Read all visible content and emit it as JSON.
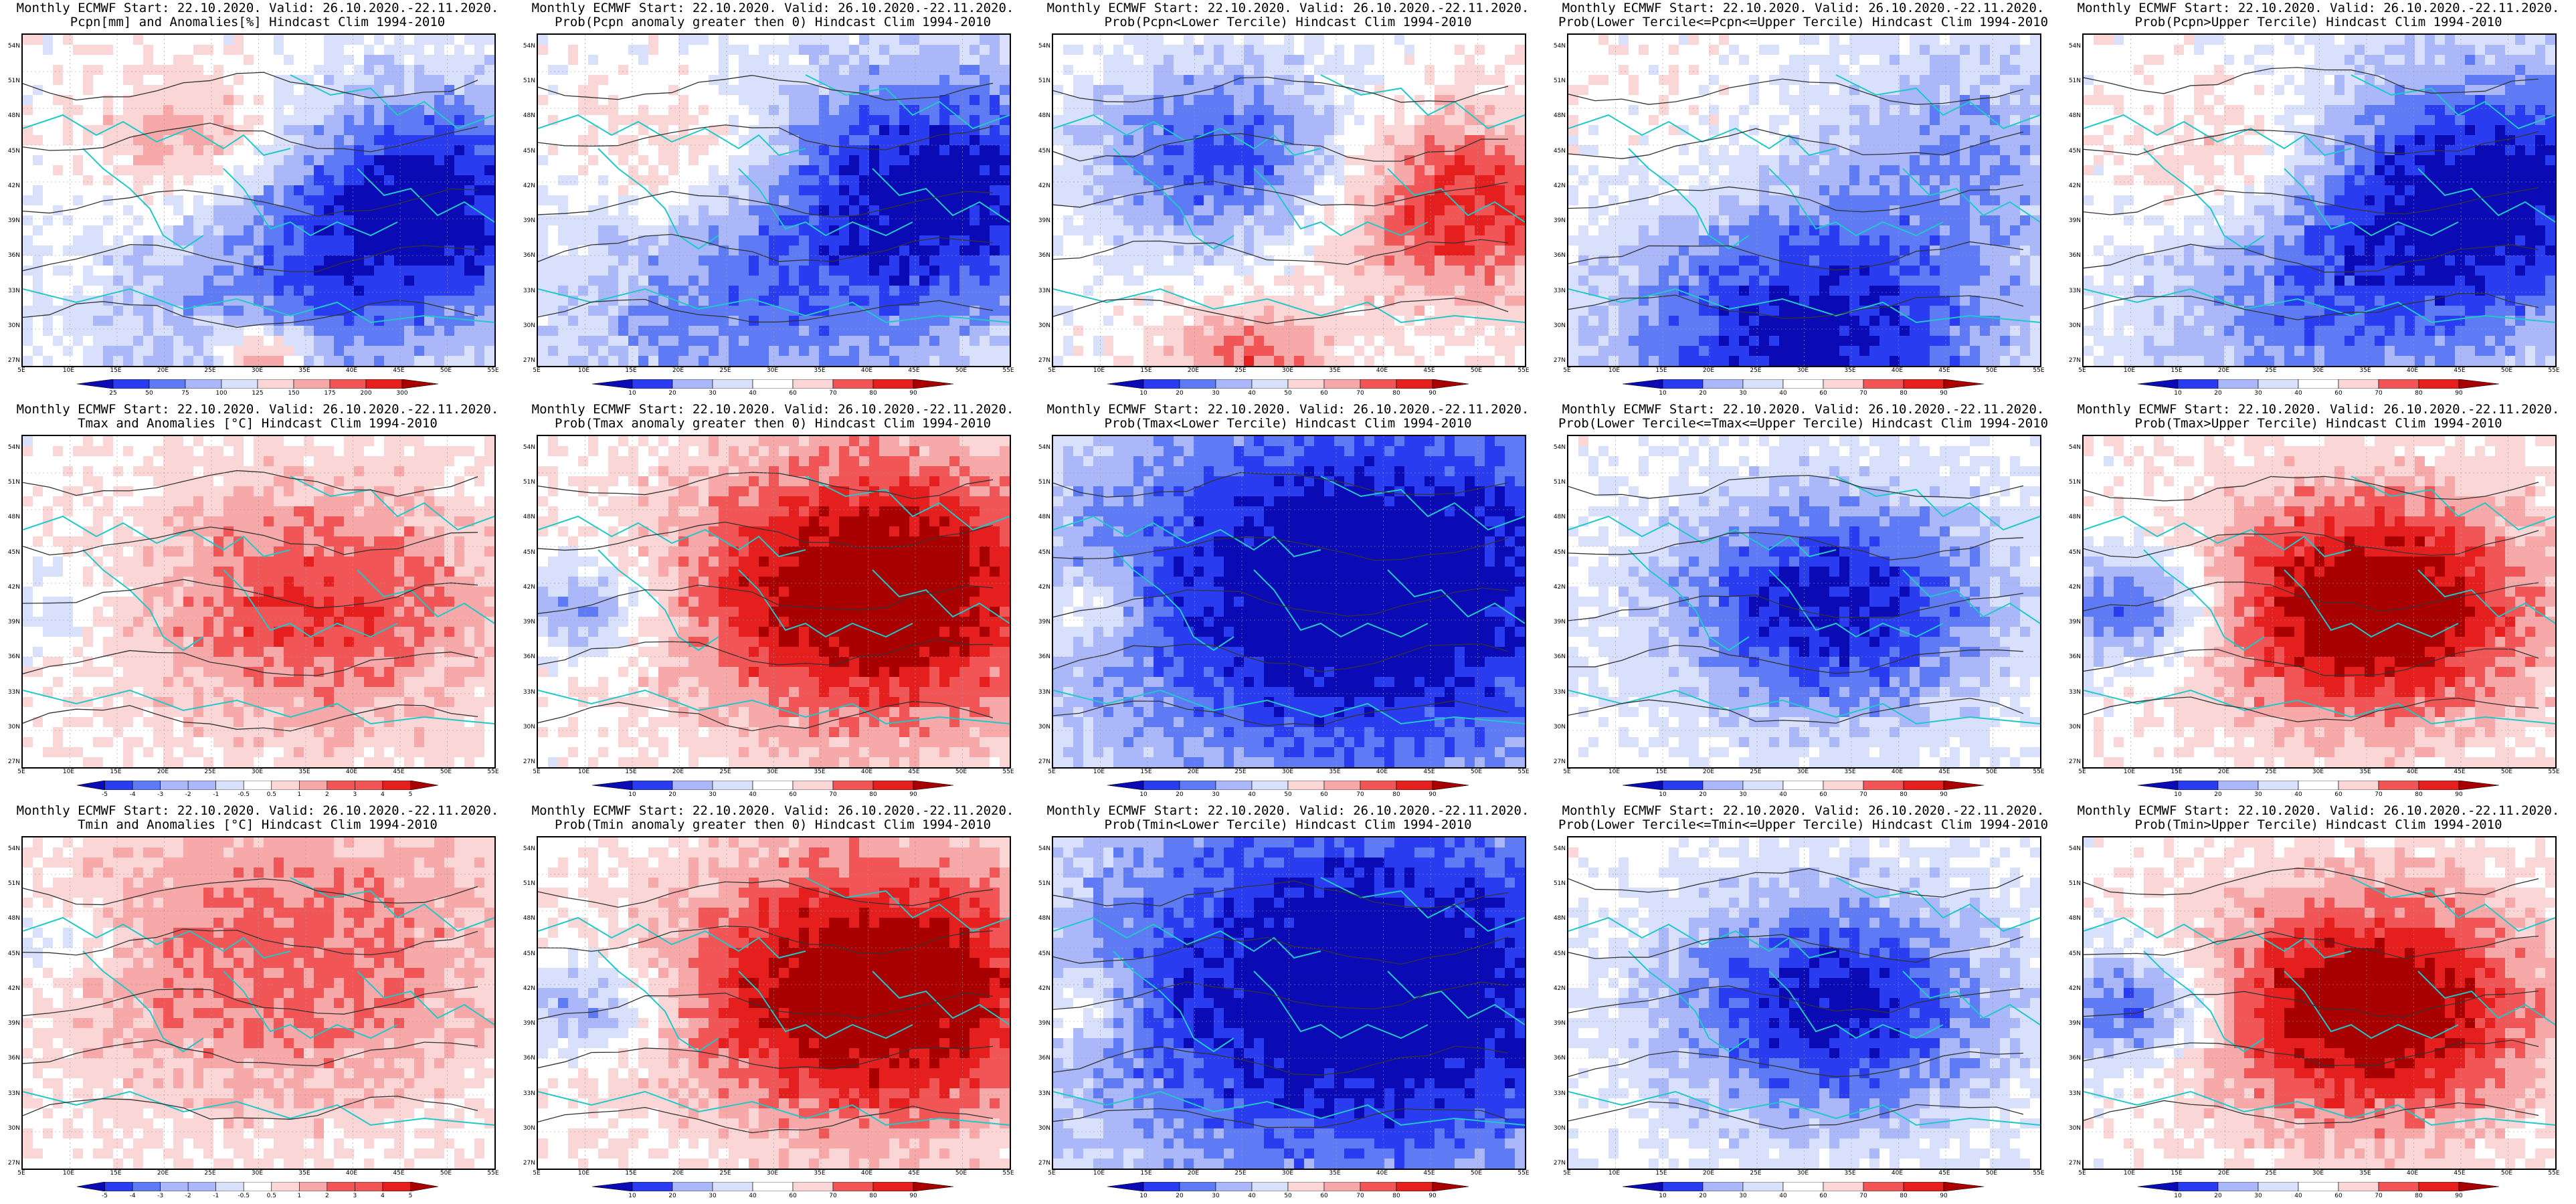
{
  "panels": [
    {
      "title1": "Monthly ECMWF Start: 22.10.2020. Valid: 26.10.2020.-22.11.2020.",
      "title2": "Pcpn[mm] and Anomalies[%] Hindcast Clim 1994-2010",
      "scheme": "anom_pcpn",
      "colorbar": [
        "25",
        "50",
        "75",
        "100",
        "125",
        "150",
        "175",
        "200",
        "300"
      ]
    },
    {
      "title1": "Monthly ECMWF Start: 22.10.2020. Valid: 26.10.2020.-22.11.2020.",
      "title2": "Prob(Pcpn anomaly greater then 0) Hindcast Clim 1994-2010",
      "scheme": "prob_wet",
      "colorbar": [
        "10",
        "20",
        "30",
        "40",
        "60",
        "70",
        "80",
        "90"
      ]
    },
    {
      "title1": "Monthly ECMWF Start: 22.10.2020. Valid: 26.10.2020.-22.11.2020.",
      "title2": "Prob(Pcpn<Lower Tercile) Hindcast Clim 1994-2010",
      "scheme": "prob_dry",
      "colorbar": [
        "10",
        "20",
        "30",
        "40",
        "50",
        "60",
        "70",
        "80",
        "90"
      ]
    },
    {
      "title1": "Monthly ECMWF Start: 22.10.2020. Valid: 26.10.2020.-22.11.2020.",
      "title2": "Prob(Lower Tercile<=Pcpn<=Upper Tercile) Hindcast Clim 1994-2010",
      "scheme": "prob_mid",
      "colorbar": [
        "10",
        "20",
        "30",
        "40",
        "60",
        "70",
        "80",
        "90"
      ]
    },
    {
      "title1": "Monthly ECMWF Start: 22.10.2020. Valid: 26.10.2020.-22.11.2020.",
      "title2": "Prob(Pcpn>Upper Tercile) Hindcast Clim 1994-2010",
      "scheme": "prob_wet2",
      "colorbar": [
        "10",
        "20",
        "30",
        "40",
        "60",
        "70",
        "80",
        "90"
      ]
    },
    {
      "title1": "Monthly ECMWF Start: 22.10.2020. Valid: 26.10.2020.-22.11.2020.",
      "title2": "Tmax and Anomalies [°C] Hindcast Clim 1994-2010",
      "scheme": "anom_temp",
      "colorbar": [
        "-5",
        "-4",
        "-3",
        "-2",
        "-1",
        "-0.5",
        "0.5",
        "1",
        "2",
        "3",
        "4",
        "5"
      ]
    },
    {
      "title1": "Monthly ECMWF Start: 22.10.2020. Valid: 26.10.2020.-22.11.2020.",
      "title2": "Prob(Tmax anomaly greater then 0) Hindcast Clim 1994-2010",
      "scheme": "prob_warm",
      "colorbar": [
        "10",
        "20",
        "30",
        "40",
        "60",
        "70",
        "80",
        "90"
      ]
    },
    {
      "title1": "Monthly ECMWF Start: 22.10.2020. Valid: 26.10.2020.-22.11.2020.",
      "title2": "Prob(Tmax<Lower Tercile) Hindcast Clim 1994-2010",
      "scheme": "prob_cold",
      "colorbar": [
        "10",
        "20",
        "30",
        "40",
        "50",
        "60",
        "70",
        "80",
        "90"
      ]
    },
    {
      "title1": "Monthly ECMWF Start: 22.10.2020. Valid: 26.10.2020.-22.11.2020.",
      "title2": "Prob(Lower Tercile<=Tmax<=Upper Tercile) Hindcast Clim 1994-2010",
      "scheme": "prob_midT",
      "colorbar": [
        "10",
        "20",
        "30",
        "40",
        "60",
        "70",
        "80",
        "90"
      ]
    },
    {
      "title1": "Monthly ECMWF Start: 22.10.2020. Valid: 26.10.2020.-22.11.2020.",
      "title2": "Prob(Tmax>Upper Tercile) Hindcast Clim 1994-2010",
      "scheme": "prob_warm2",
      "colorbar": [
        "10",
        "20",
        "30",
        "40",
        "60",
        "70",
        "80",
        "90"
      ]
    },
    {
      "title1": "Monthly ECMWF Start: 22.10.2020. Valid: 26.10.2020.-22.11.2020.",
      "title2": "Tmin and Anomalies [°C] Hindcast Clim 1994-2010",
      "scheme": "anom_temp2",
      "colorbar": [
        "-5",
        "-4",
        "-3",
        "-2",
        "-1",
        "-0.5",
        "0.5",
        "1",
        "2",
        "3",
        "4",
        "5"
      ]
    },
    {
      "title1": "Monthly ECMWF Start: 22.10.2020. Valid: 26.10.2020.-22.11.2020.",
      "title2": "Prob(Tmin anomaly greater then 0) Hindcast Clim 1994-2010",
      "scheme": "prob_warm",
      "colorbar": [
        "10",
        "20",
        "30",
        "40",
        "60",
        "70",
        "80",
        "90"
      ]
    },
    {
      "title1": "Monthly ECMWF Start: 22.10.2020. Valid: 26.10.2020.-22.11.2020.",
      "title2": "Prob(Tmin<Lower Tercile) Hindcast Clim 1994-2010",
      "scheme": "prob_cold",
      "colorbar": [
        "10",
        "20",
        "30",
        "40",
        "50",
        "60",
        "70",
        "80",
        "90"
      ]
    },
    {
      "title1": "Monthly ECMWF Start: 22.10.2020. Valid: 26.10.2020.-22.11.2020.",
      "title2": "Prob(Lower Tercile<=Tmin<=Upper Tercile) Hindcast Clim 1994-2010",
      "scheme": "prob_midT",
      "colorbar": [
        "10",
        "20",
        "30",
        "40",
        "60",
        "70",
        "80",
        "90"
      ]
    },
    {
      "title1": "Monthly ECMWF Start: 22.10.2020. Valid: 26.10.2020.-22.11.2020.",
      "title2": "Prob(Tmin>Upper Tercile) Hindcast Clim 1994-2010",
      "scheme": "prob_warm2",
      "colorbar": [
        "10",
        "20",
        "30",
        "40",
        "60",
        "70",
        "80",
        "90"
      ]
    }
  ],
  "lat_labels": [
    "54N",
    "51N",
    "48N",
    "45N",
    "42N",
    "39N",
    "36N",
    "33N",
    "30N",
    "27N"
  ],
  "lon_labels": [
    "5E",
    "10E",
    "15E",
    "20E",
    "25E",
    "30E",
    "35E",
    "40E",
    "45E",
    "50E",
    "55E"
  ],
  "colors": {
    "deep_blue": "#0b0bb5",
    "blue": "#2a3cf0",
    "mid_blue": "#5f7af5",
    "light_blue": "#aab8fa",
    "pale_blue": "#d9e0fc",
    "white": "#ffffff",
    "pale_red": "#fad6d6",
    "light_red": "#f7a8a8",
    "red": "#f25555",
    "mid_red": "#e51e1e",
    "deep_red": "#a80000",
    "coast": "#20c8c8",
    "contour": "#333333"
  }
}
